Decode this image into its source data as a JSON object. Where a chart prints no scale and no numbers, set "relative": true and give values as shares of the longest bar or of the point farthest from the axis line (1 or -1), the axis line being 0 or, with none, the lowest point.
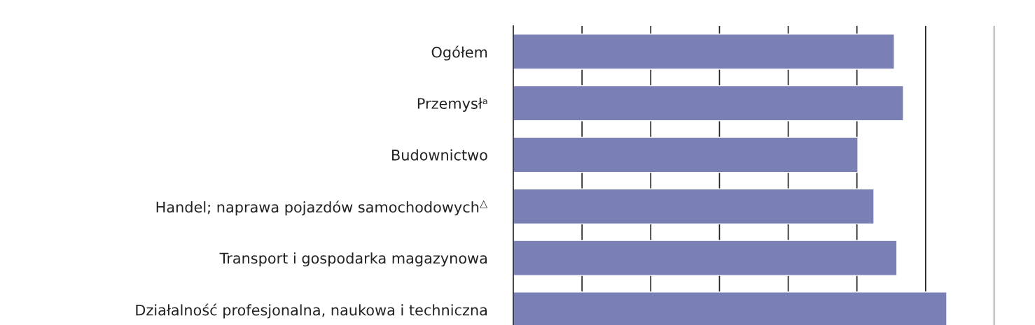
{
  "chart_data": {
    "type": "bar",
    "orientation": "horizontal",
    "relative": true,
    "categories": [
      "Ogółem",
      "Przemysłᵃ",
      "Budownictwo",
      "Handel; naprawa pojazdów samochodowych$^{△}$",
      "Transport i gospodarka magazynowa",
      "Działalność profesjonalna, naukowa i techniczna"
    ],
    "values": [
      0.879,
      0.9,
      0.795,
      0.832,
      0.885,
      1.0
    ],
    "color": "#7b80b4",
    "grid": "x"
  }
}
